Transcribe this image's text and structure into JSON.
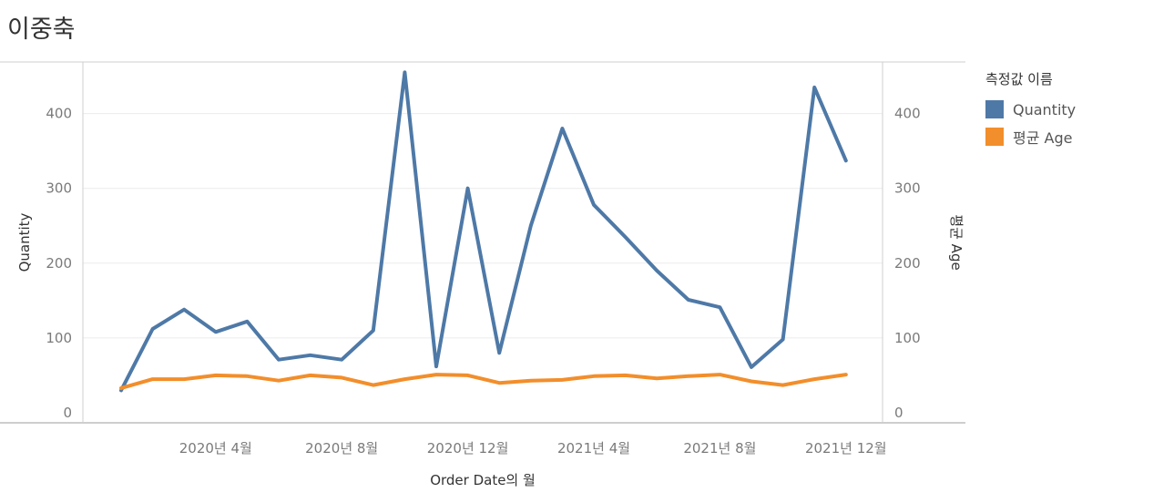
{
  "title": "이중축",
  "chart_data": {
    "type": "line",
    "xlabel": "Order Date의 월",
    "ylabel": "Quantity",
    "ylabel_right": "평균 Age",
    "x": [
      "2020-01",
      "2020-02",
      "2020-03",
      "2020-04",
      "2020-05",
      "2020-06",
      "2020-07",
      "2020-08",
      "2020-09",
      "2020-10",
      "2020-11",
      "2020-12",
      "2021-01",
      "2021-02",
      "2021-03",
      "2021-04",
      "2021-05",
      "2021-06",
      "2021-07",
      "2021-08",
      "2021-09",
      "2021-10",
      "2021-11",
      "2021-12"
    ],
    "x_tick_labels": [
      "2020년 4월",
      "2020년 8월",
      "2020년 12월",
      "2021년 4월",
      "2021년 8월",
      "2021년 12월"
    ],
    "ylim": [
      0,
      460
    ],
    "y_ticks": [
      "0",
      "100",
      "200",
      "300",
      "400"
    ],
    "y_ticks_right": [
      "0",
      "100",
      "200",
      "300",
      "400"
    ],
    "legend_title": "측정값 이름",
    "legend_position": "right",
    "grid": true,
    "series": [
      {
        "name": "Quantity",
        "color": "#4e79a7",
        "axis": "left",
        "values": [
          30,
          112,
          138,
          108,
          122,
          71,
          77,
          71,
          110,
          455,
          62,
          300,
          80,
          250,
          380,
          278,
          235,
          190,
          151,
          141,
          61,
          98,
          435,
          337
        ]
      },
      {
        "name": "평균 Age",
        "color": "#f28e2b",
        "axis": "right",
        "values": [
          33,
          45,
          45,
          50,
          49,
          43,
          50,
          47,
          37,
          45,
          51,
          50,
          40,
          43,
          44,
          49,
          50,
          46,
          49,
          51,
          42,
          37,
          45,
          51
        ]
      }
    ]
  }
}
